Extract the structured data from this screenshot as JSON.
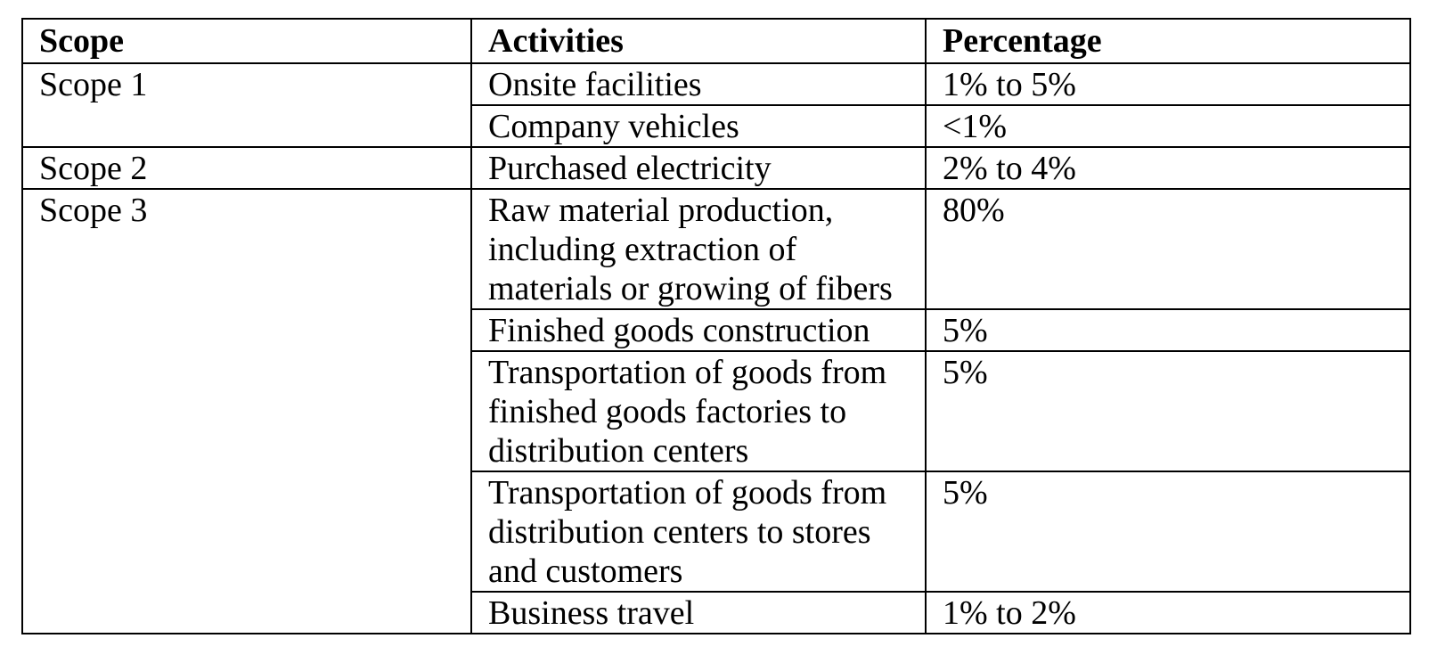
{
  "table": {
    "headers": [
      "Scope",
      "Activities",
      "Percentage"
    ],
    "groups": [
      {
        "scope": "Scope 1",
        "rows": [
          {
            "activity": "Onsite facilities",
            "percentage": "1% to 5%"
          },
          {
            "activity": "Company vehicles",
            "percentage": "<1%"
          }
        ]
      },
      {
        "scope": "Scope 2",
        "rows": [
          {
            "activity": "Purchased electricity",
            "percentage": "2% to 4%"
          }
        ]
      },
      {
        "scope": "Scope 3",
        "rows": [
          {
            "activity": "Raw material production, including extraction of materials or growing of fibers",
            "percentage": "80%"
          },
          {
            "activity": "Finished goods construction",
            "percentage": "5%"
          },
          {
            "activity": "Transportation of goods from finished goods factories to distribution centers",
            "percentage": "5%"
          },
          {
            "activity": "Transportation of goods from distribution centers to stores and customers",
            "percentage": "5%"
          },
          {
            "activity": "Business travel",
            "percentage": "1% to 2%"
          }
        ]
      }
    ]
  }
}
